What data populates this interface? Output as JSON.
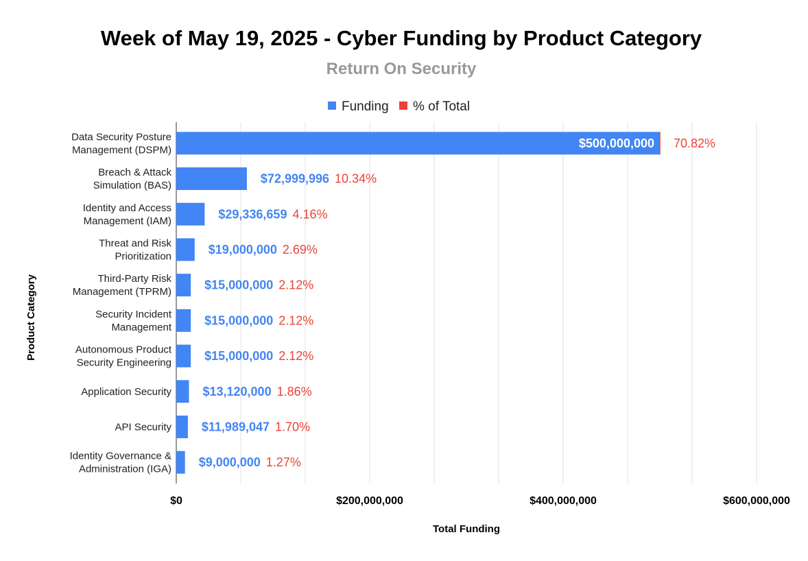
{
  "chart_data": {
    "type": "bar",
    "orientation": "horizontal",
    "title": "Week of May 19, 2025 - Cyber Funding by Product Category",
    "subtitle": "Return On Security",
    "xlabel": "Total Funding",
    "ylabel": "Product Category",
    "legend_position": "top",
    "grid": true,
    "xlim": [
      0,
      600000000
    ],
    "x_ticks": [
      0,
      200000000,
      400000000,
      600000000
    ],
    "x_tick_labels": [
      "$0",
      "$200,000,000",
      "$400,000,000",
      "$600,000,000"
    ],
    "categories": [
      [
        "Data Security Posture",
        "Management (DSPM)"
      ],
      [
        "Breach & Attack",
        "Simulation (BAS)"
      ],
      [
        "Identity and Access",
        "Management (IAM)"
      ],
      [
        "Threat and Risk",
        "Prioritization"
      ],
      [
        "Third-Party Risk",
        "Management (TPRM)"
      ],
      [
        "Security Incident",
        "Management"
      ],
      [
        "Autonomous Product",
        "Security Engineering"
      ],
      [
        "Application Security"
      ],
      [
        "API Security"
      ],
      [
        "Identity Governance &",
        "Administration (IGA)"
      ]
    ],
    "series": [
      {
        "name": "Funding",
        "color": "#4285f4",
        "values": [
          500000000,
          72999996,
          29336659,
          19000000,
          15000000,
          15000000,
          15000000,
          13120000,
          11989047,
          9000000
        ],
        "labels": [
          "$500,000,000",
          "$72,999,996",
          "$29,336,659",
          "$19,000,000",
          "$15,000,000",
          "$15,000,000",
          "$15,000,000",
          "$13,120,000",
          "$11,989,047",
          "$9,000,000"
        ]
      },
      {
        "name": "% of Total",
        "color": "#ea4335",
        "values": [
          70.82,
          10.34,
          4.16,
          2.69,
          2.12,
          2.12,
          2.12,
          1.86,
          1.7,
          1.27
        ],
        "labels": [
          "70.82%",
          "10.34%",
          "4.16%",
          "2.69%",
          "2.12%",
          "2.12%",
          "2.12%",
          "1.86%",
          "1.70%",
          "1.27%"
        ]
      }
    ]
  }
}
